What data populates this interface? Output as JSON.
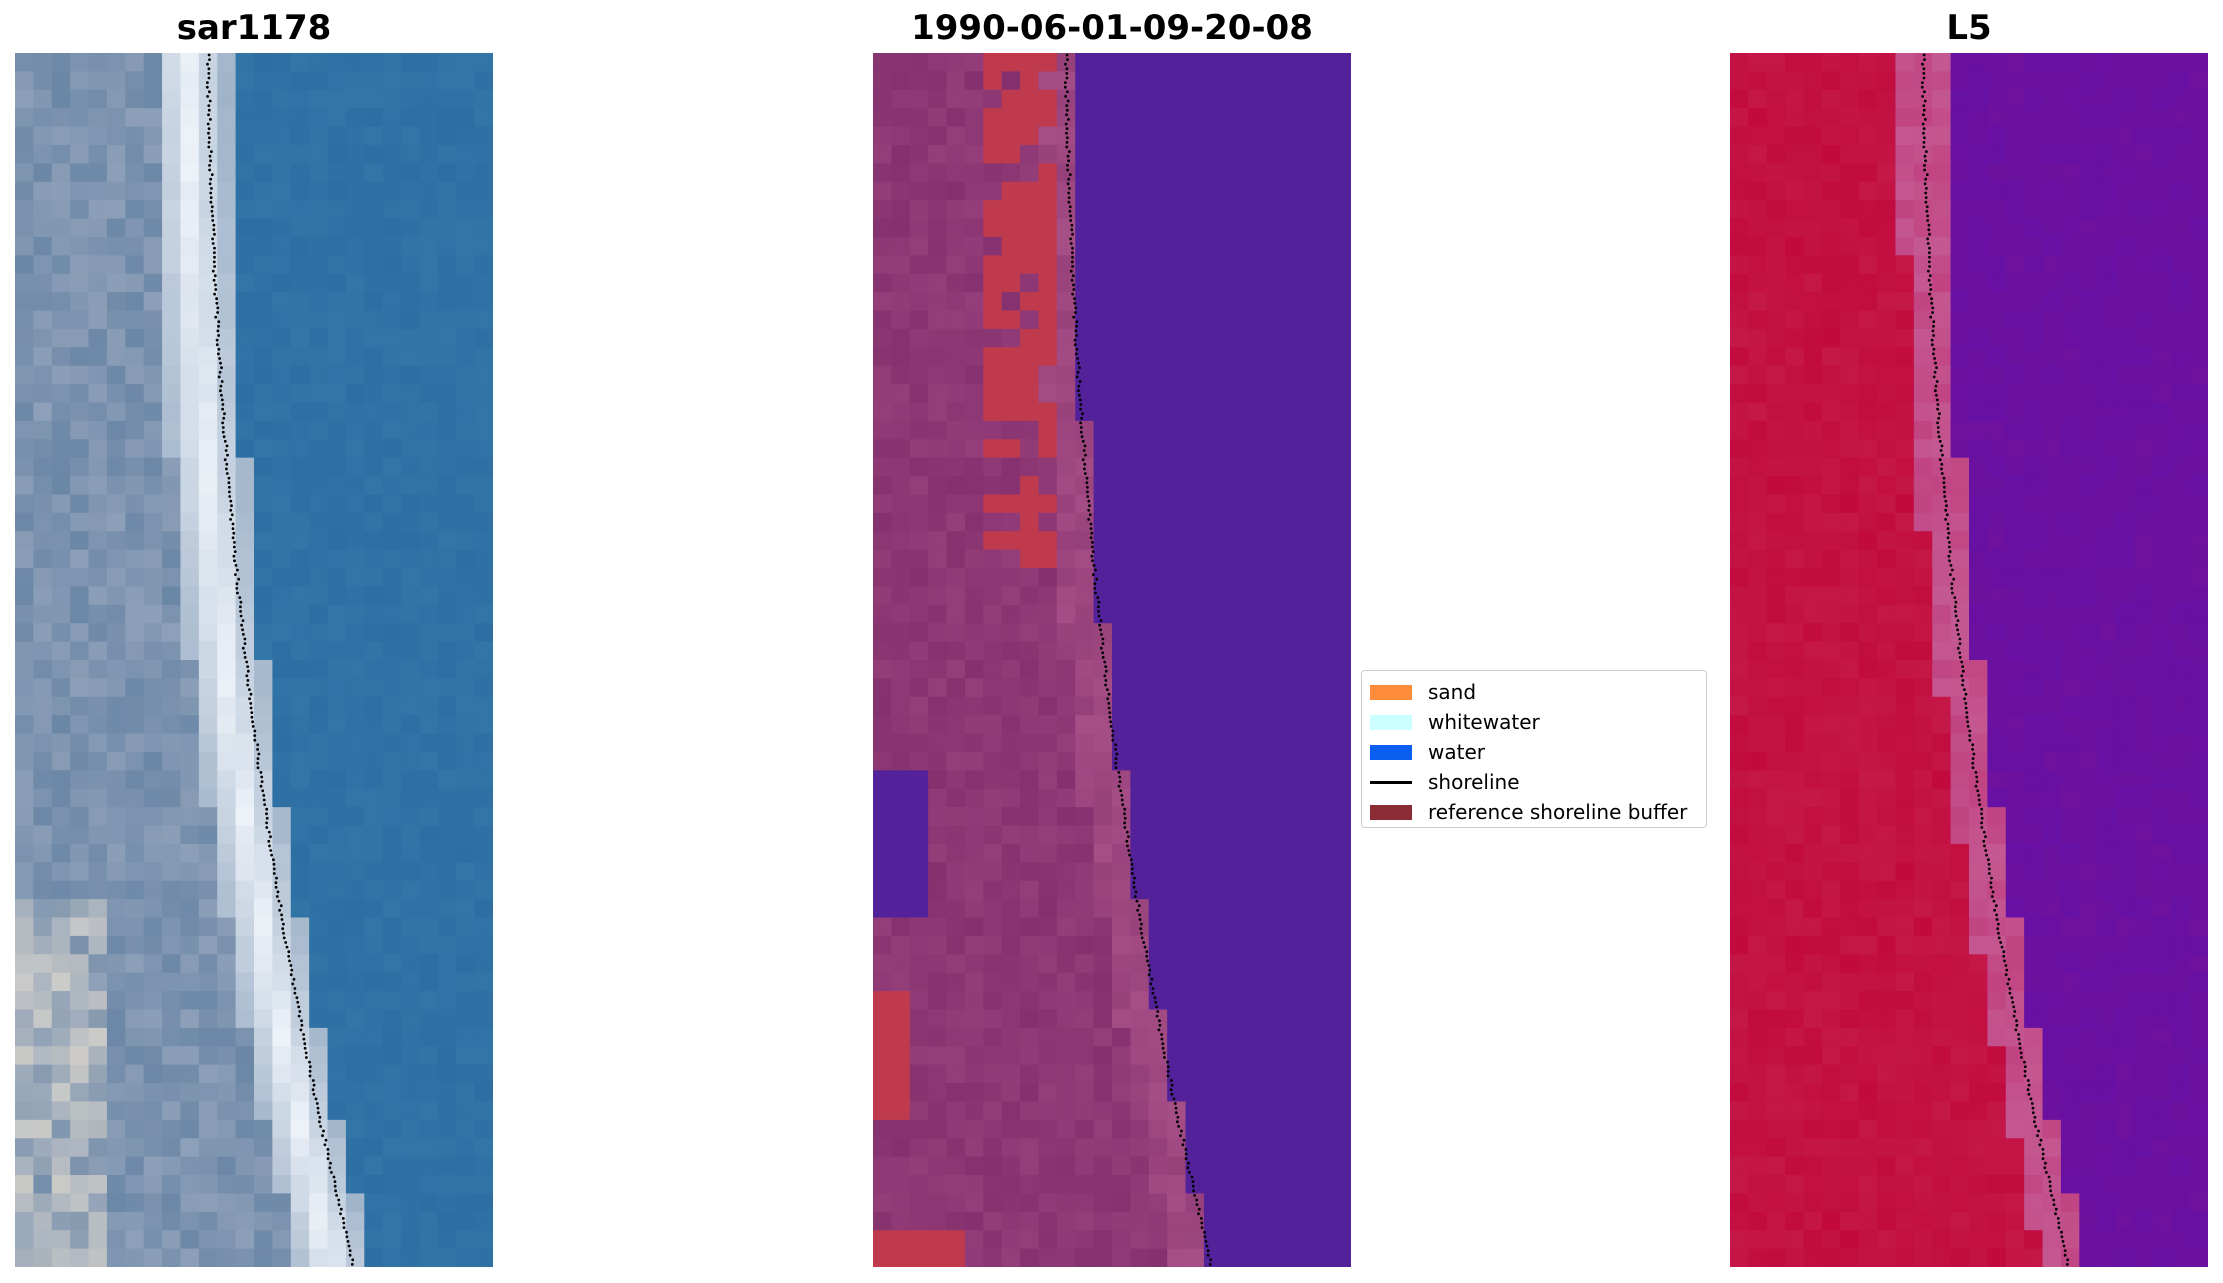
{
  "panels": [
    {
      "title": "sar1178",
      "kind": "rgb"
    },
    {
      "title": "1990-06-01-09-20-08",
      "kind": "classified"
    },
    {
      "title": "L5",
      "kind": "index"
    }
  ],
  "legend": {
    "items": [
      {
        "label": "sand",
        "color": "#ff8c3a",
        "type": "patch"
      },
      {
        "label": "whitewater",
        "color": "#ccffff",
        "type": "patch"
      },
      {
        "label": "water",
        "color": "#0a5ff0",
        "type": "patch"
      },
      {
        "label": "shoreline",
        "color": "#000000",
        "type": "line"
      },
      {
        "label": "reference shoreline buffer",
        "color": "#8b2c35",
        "type": "patch"
      }
    ]
  },
  "colors": {
    "rgb_water": "#2d6fa3",
    "rgb_land": "#6b87a6",
    "rgb_whitewater": "#f0f4fa",
    "class_water": "#53229a",
    "class_buffer": "#85316f",
    "class_buffer_edge": "#a64e86",
    "class_sand": "#c03a4e",
    "index_land": "#c20a3e",
    "index_water": "#6d119e",
    "index_mid": "#c14382"
  }
}
